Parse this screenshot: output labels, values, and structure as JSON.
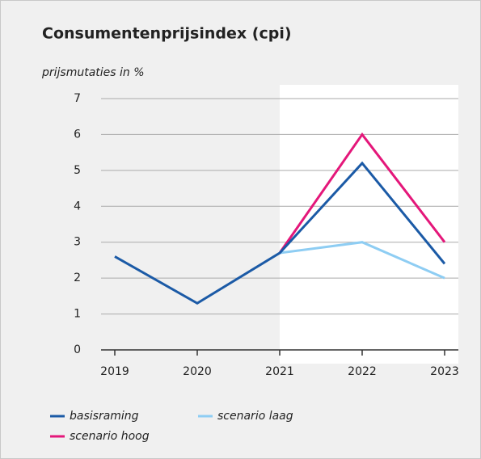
{
  "chart_data": {
    "type": "line",
    "title": "Consumentenprijsindex (cpi)",
    "y_label": "prijsmutaties in %",
    "categories": [
      "2019",
      "2020",
      "2021",
      "2022",
      "2023"
    ],
    "series": [
      {
        "name": "basisraming",
        "color": "#1b5aa6",
        "values": [
          2.6,
          1.3,
          2.7,
          5.2,
          2.4
        ]
      },
      {
        "name": "scenario hoog",
        "color": "#e4177a",
        "values": [
          null,
          null,
          2.7,
          6.0,
          3.0
        ]
      },
      {
        "name": "scenario laag",
        "color": "#8ecdf3",
        "values": [
          null,
          null,
          2.7,
          3.0,
          2.0
        ]
      }
    ],
    "ylim": [
      0,
      7
    ],
    "yticks": [
      0,
      1,
      2,
      3,
      4,
      5,
      6,
      7
    ],
    "grid": true
  }
}
